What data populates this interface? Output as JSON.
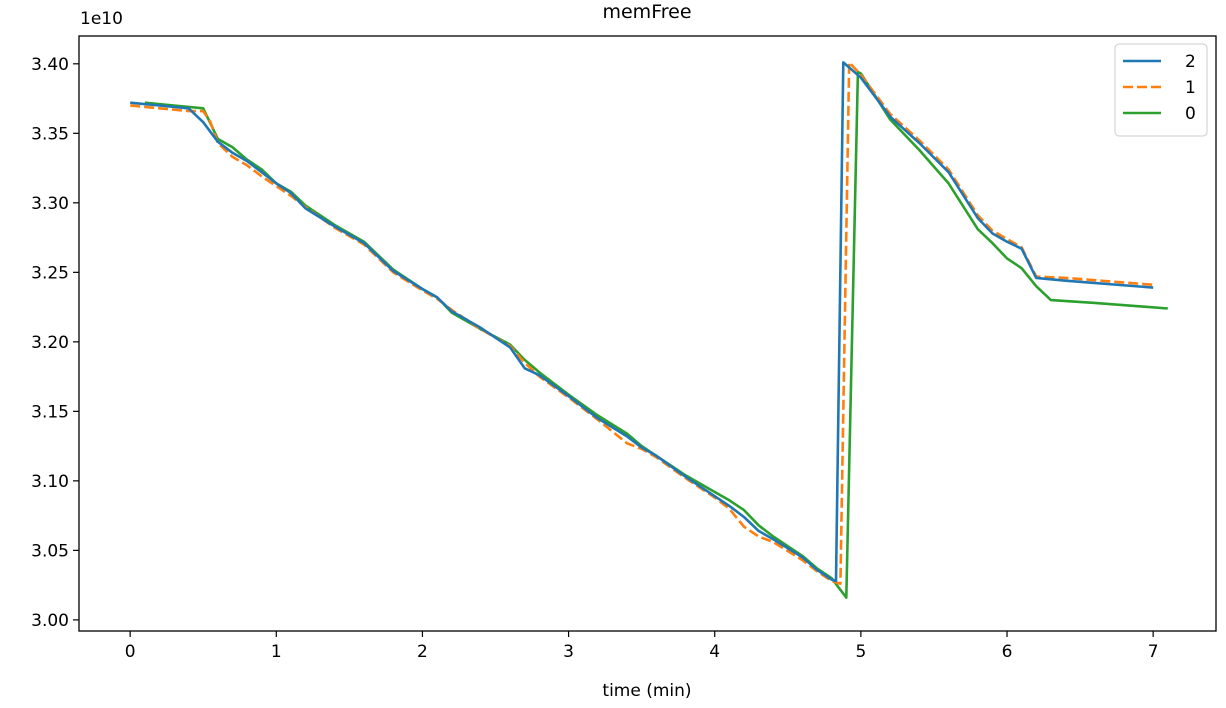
{
  "chart_data": {
    "type": "line",
    "title": "memFree",
    "xlabel": "time (min)",
    "ylabel": "",
    "y_offset_label": "1e10",
    "xlim": [
      -0.35,
      7.43
    ],
    "ylim": [
      2.992,
      3.42
    ],
    "x_ticks": [
      0,
      1,
      2,
      3,
      4,
      5,
      6,
      7
    ],
    "x_tick_labels": [
      "0",
      "1",
      "2",
      "3",
      "4",
      "5",
      "6",
      "7"
    ],
    "y_ticks": [
      3.0,
      3.05,
      3.1,
      3.15,
      3.2,
      3.25,
      3.3,
      3.35,
      3.4
    ],
    "y_tick_labels": [
      "3.00",
      "3.05",
      "3.10",
      "3.15",
      "3.20",
      "3.25",
      "3.30",
      "3.35",
      "3.40"
    ],
    "grid": false,
    "legend_position": "top-right",
    "series": [
      {
        "name": "2",
        "color": "#1f77b4",
        "dash": "solid",
        "points": [
          [
            0,
            3.372
          ],
          [
            0.2,
            3.37
          ],
          [
            0.4,
            3.368
          ],
          [
            0.5,
            3.358
          ],
          [
            0.6,
            3.344
          ],
          [
            0.7,
            3.336
          ],
          [
            0.8,
            3.33
          ],
          [
            0.9,
            3.322
          ],
          [
            1.0,
            3.314
          ],
          [
            1.1,
            3.307
          ],
          [
            1.2,
            3.296
          ],
          [
            1.4,
            3.283
          ],
          [
            1.6,
            3.271
          ],
          [
            1.8,
            3.251
          ],
          [
            2.0,
            3.238
          ],
          [
            2.1,
            3.232
          ],
          [
            2.2,
            3.222
          ],
          [
            2.4,
            3.21
          ],
          [
            2.6,
            3.196
          ],
          [
            2.7,
            3.181
          ],
          [
            2.8,
            3.176
          ],
          [
            3.0,
            3.161
          ],
          [
            3.2,
            3.145
          ],
          [
            3.4,
            3.132
          ],
          [
            3.5,
            3.124
          ],
          [
            3.6,
            3.118
          ],
          [
            3.8,
            3.103
          ],
          [
            4.0,
            3.089
          ],
          [
            4.1,
            3.082
          ],
          [
            4.2,
            3.074
          ],
          [
            4.3,
            3.064
          ],
          [
            4.4,
            3.058
          ],
          [
            4.6,
            3.045
          ],
          [
            4.7,
            3.036
          ],
          [
            4.8,
            3.029
          ],
          [
            4.83,
            3.028
          ],
          [
            4.88,
            3.401
          ],
          [
            5.0,
            3.39
          ],
          [
            5.2,
            3.362
          ],
          [
            5.4,
            3.343
          ],
          [
            5.6,
            3.322
          ],
          [
            5.8,
            3.289
          ],
          [
            5.9,
            3.278
          ],
          [
            6.0,
            3.272
          ],
          [
            6.1,
            3.267
          ],
          [
            6.2,
            3.246
          ],
          [
            6.4,
            3.244
          ],
          [
            7.0,
            3.239
          ]
        ]
      },
      {
        "name": "1",
        "color": "#ff7f0e",
        "dash": "dashed",
        "points": [
          [
            0,
            3.37
          ],
          [
            0.2,
            3.368
          ],
          [
            0.4,
            3.366
          ],
          [
            0.5,
            3.366
          ],
          [
            0.55,
            3.358
          ],
          [
            0.6,
            3.343
          ],
          [
            0.7,
            3.333
          ],
          [
            0.8,
            3.327
          ],
          [
            0.9,
            3.319
          ],
          [
            1.0,
            3.312
          ],
          [
            1.1,
            3.305
          ],
          [
            1.2,
            3.297
          ],
          [
            1.4,
            3.282
          ],
          [
            1.6,
            3.27
          ],
          [
            1.8,
            3.25
          ],
          [
            2.0,
            3.237
          ],
          [
            2.1,
            3.231
          ],
          [
            2.2,
            3.223
          ],
          [
            2.4,
            3.209
          ],
          [
            2.6,
            3.197
          ],
          [
            2.7,
            3.185
          ],
          [
            2.8,
            3.175
          ],
          [
            3.0,
            3.16
          ],
          [
            3.2,
            3.144
          ],
          [
            3.4,
            3.127
          ],
          [
            3.5,
            3.123
          ],
          [
            3.6,
            3.117
          ],
          [
            3.8,
            3.102
          ],
          [
            4.0,
            3.088
          ],
          [
            4.1,
            3.08
          ],
          [
            4.2,
            3.067
          ],
          [
            4.3,
            3.06
          ],
          [
            4.4,
            3.056
          ],
          [
            4.6,
            3.043
          ],
          [
            4.7,
            3.035
          ],
          [
            4.8,
            3.028
          ],
          [
            4.86,
            3.026
          ],
          [
            4.92,
            3.401
          ],
          [
            5.0,
            3.392
          ],
          [
            5.2,
            3.364
          ],
          [
            5.4,
            3.345
          ],
          [
            5.6,
            3.324
          ],
          [
            5.8,
            3.291
          ],
          [
            5.9,
            3.28
          ],
          [
            6.0,
            3.274
          ],
          [
            6.1,
            3.268
          ],
          [
            6.2,
            3.247
          ],
          [
            6.4,
            3.246
          ],
          [
            7.0,
            3.241
          ]
        ]
      },
      {
        "name": "0",
        "color": "#2ca02c",
        "dash": "solid",
        "points": [
          [
            0.1,
            3.372
          ],
          [
            0.3,
            3.37
          ],
          [
            0.5,
            3.368
          ],
          [
            0.6,
            3.346
          ],
          [
            0.7,
            3.34
          ],
          [
            0.8,
            3.331
          ],
          [
            0.9,
            3.324
          ],
          [
            1.0,
            3.314
          ],
          [
            1.1,
            3.308
          ],
          [
            1.2,
            3.298
          ],
          [
            1.4,
            3.284
          ],
          [
            1.6,
            3.272
          ],
          [
            1.8,
            3.252
          ],
          [
            2.0,
            3.238
          ],
          [
            2.1,
            3.232
          ],
          [
            2.2,
            3.221
          ],
          [
            2.4,
            3.209
          ],
          [
            2.6,
            3.198
          ],
          [
            2.7,
            3.187
          ],
          [
            2.8,
            3.178
          ],
          [
            3.0,
            3.162
          ],
          [
            3.2,
            3.147
          ],
          [
            3.4,
            3.134
          ],
          [
            3.5,
            3.125
          ],
          [
            3.6,
            3.118
          ],
          [
            3.8,
            3.104
          ],
          [
            4.0,
            3.092
          ],
          [
            4.1,
            3.086
          ],
          [
            4.2,
            3.079
          ],
          [
            4.3,
            3.068
          ],
          [
            4.4,
            3.06
          ],
          [
            4.6,
            3.046
          ],
          [
            4.7,
            3.037
          ],
          [
            4.8,
            3.03
          ],
          [
            4.9,
            3.016
          ],
          [
            4.98,
            3.394
          ],
          [
            5.0,
            3.393
          ],
          [
            5.2,
            3.36
          ],
          [
            5.4,
            3.338
          ],
          [
            5.6,
            3.314
          ],
          [
            5.8,
            3.281
          ],
          [
            5.9,
            3.271
          ],
          [
            6.0,
            3.26
          ],
          [
            6.1,
            3.253
          ],
          [
            6.2,
            3.24
          ],
          [
            6.3,
            3.23
          ],
          [
            6.6,
            3.228
          ],
          [
            7.1,
            3.224
          ]
        ]
      }
    ]
  }
}
